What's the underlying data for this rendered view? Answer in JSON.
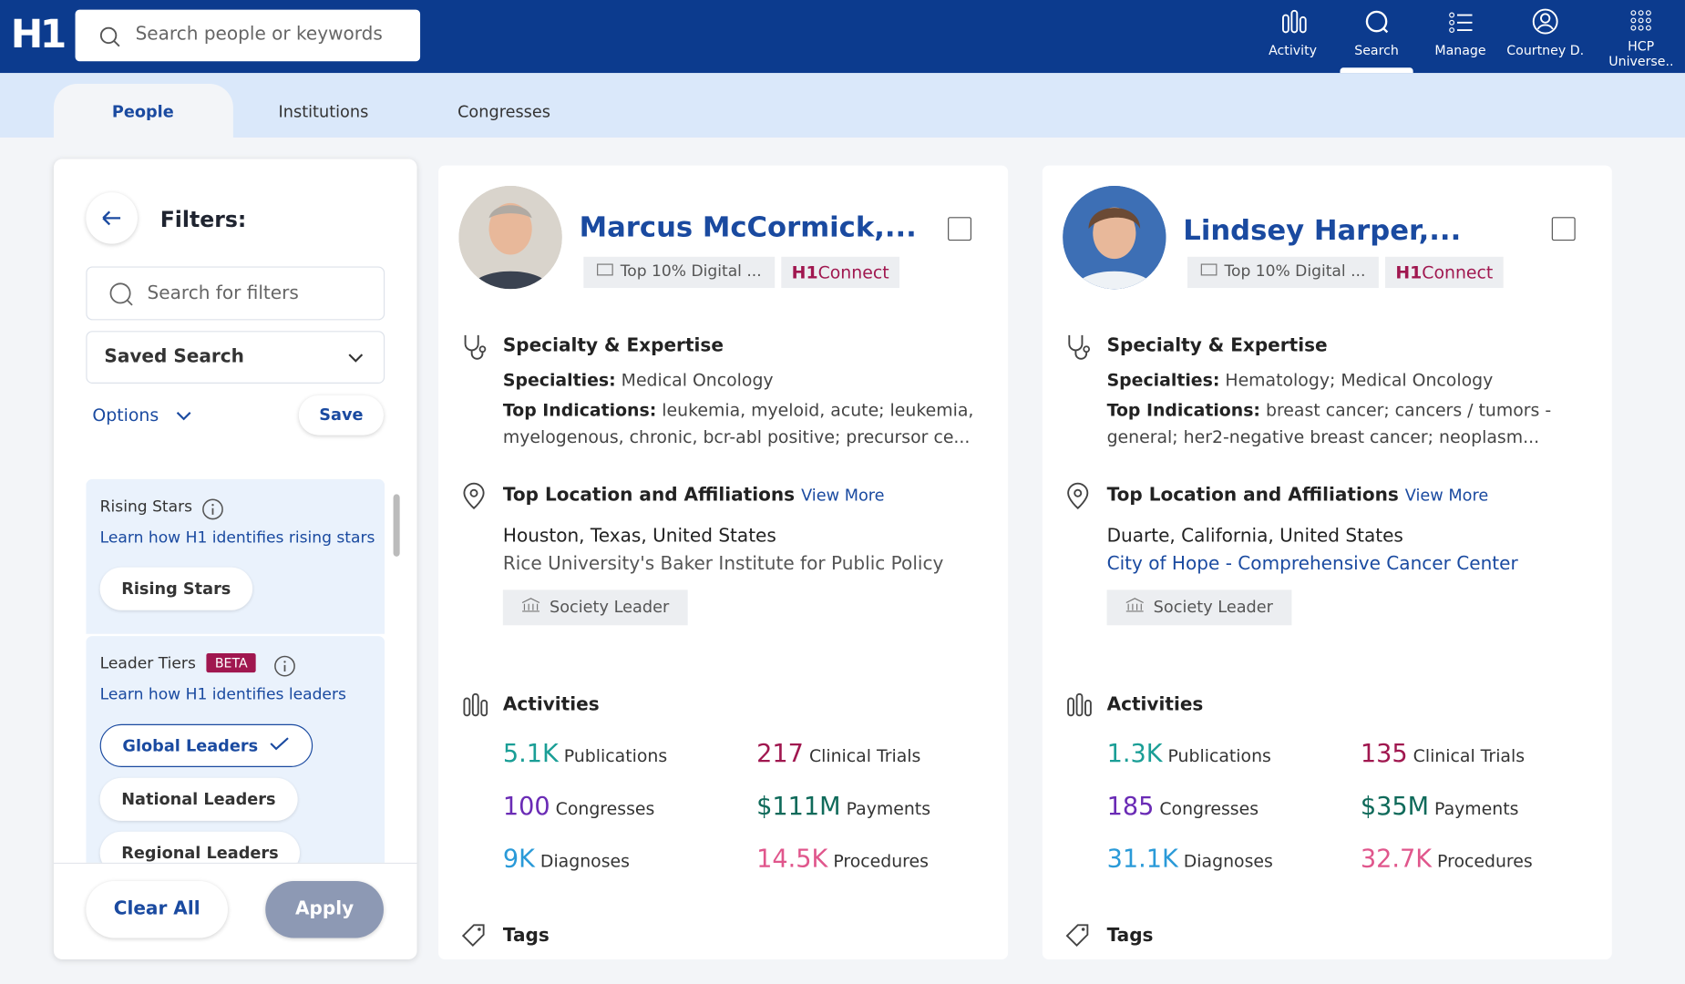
{
  "header": {
    "logo": "H1",
    "search_placeholder": "Search people or keywords",
    "nav": [
      "Activity",
      "Search",
      "Manage",
      "Courtney D.",
      "HCP Universe.."
    ]
  },
  "tabs": [
    "People",
    "Institutions",
    "Congresses"
  ],
  "filters": {
    "title": "Filters:",
    "search_placeholder": "Search for filters",
    "saved_search": "Saved Search",
    "options": "Options",
    "save": "Save",
    "sections": [
      {
        "title": "Rising Stars",
        "link": "Learn how H1 identifies rising stars",
        "chips": [
          "Rising Stars"
        ]
      },
      {
        "title": "Leader Tiers",
        "badge": "BETA",
        "link": "Learn how H1 identifies leaders",
        "chips": [
          "Global Leaders",
          "National Leaders",
          "Regional Leaders"
        ]
      }
    ],
    "clear": "Clear All",
    "apply": "Apply"
  },
  "cards": [
    {
      "name": "Marcus McCormick,...",
      "badge": "Top 10% Digital ...",
      "connect": {
        "logo": "H1",
        "text": "Connect"
      },
      "specialty_heading": "Specialty & Expertise",
      "specialties_label": "Specialties:",
      "specialties": "Medical Oncology",
      "indications_label": "Top Indications:",
      "indications": "leukemia, myeloid, acute; leukemia, myelogenous, chronic, bcr-abl positive; precursor ce...",
      "location_heading": "Top Location and Affiliations",
      "view_more": "View More",
      "location": "Houston, Texas, United States",
      "affiliation": "Rice University's Baker Institute for Public Policy",
      "society": "Society Leader",
      "activities_heading": "Activities",
      "metrics": [
        {
          "value": "5.1K",
          "label": "Publications"
        },
        {
          "value": "217",
          "label": "Clinical Trials"
        },
        {
          "value": "100",
          "label": "Congresses"
        },
        {
          "value": "$111M",
          "label": "Payments"
        },
        {
          "value": "9K",
          "label": "Diagnoses"
        },
        {
          "value": "14.5K",
          "label": "Procedures"
        }
      ],
      "tags_heading": "Tags"
    },
    {
      "name": "Lindsey Harper,...",
      "badge": "Top 10% Digital ...",
      "connect": {
        "logo": "H1",
        "text": "Connect"
      },
      "specialty_heading": "Specialty & Expertise",
      "specialties_label": "Specialties:",
      "specialties": "Hematology; Medical Oncology",
      "indications_label": "Top Indications:",
      "indications": "breast cancer; cancers / tumors - general; her2-negative breast cancer; neoplasm...",
      "location_heading": "Top Location and Affiliations",
      "view_more": "View More",
      "location": "Duarte, California, United States",
      "affiliation": "City of Hope - Comprehensive Cancer Center",
      "society": "Society Leader",
      "activities_heading": "Activities",
      "metrics": [
        {
          "value": "1.3K",
          "label": "Publications"
        },
        {
          "value": "135",
          "label": "Clinical Trials"
        },
        {
          "value": "185",
          "label": "Congresses"
        },
        {
          "value": "$35M",
          "label": "Payments"
        },
        {
          "value": "31.1K",
          "label": "Diagnoses"
        },
        {
          "value": "32.7K",
          "label": "Procedures"
        }
      ],
      "tags_heading": "Tags"
    }
  ]
}
